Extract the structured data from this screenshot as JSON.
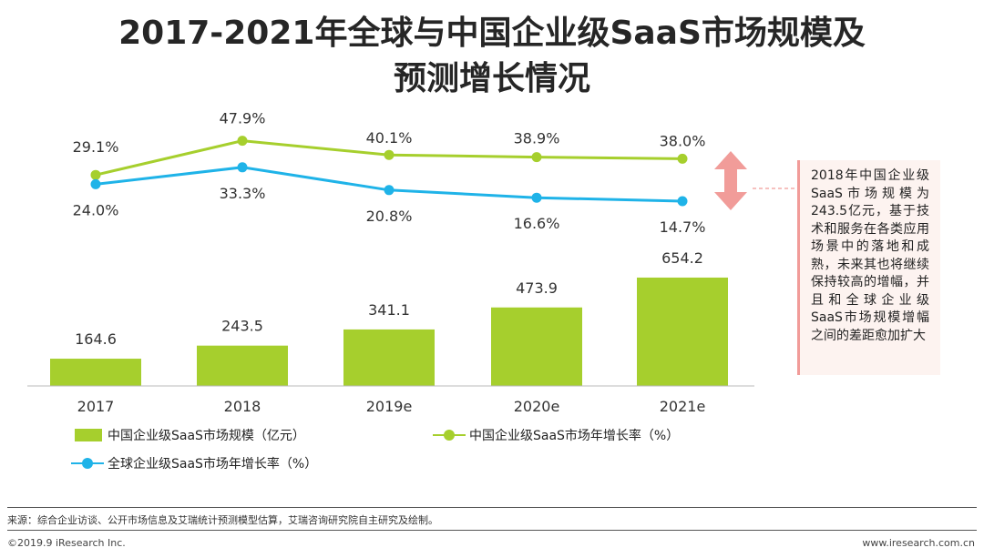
{
  "title_line1": "2017-2021年全球与中国企业级SaaS市场规模及",
  "title_line2": "预测增长情况",
  "callout": "2018年中国企业级SaaS市场规模为243.5亿元，基于技术和服务在各类应用场景中的落地和成熟，未来其也将继续保持较高的增幅，并且和全球企业级SaaS市场规模增幅之间的差距愈加扩大",
  "source": "来源：综合企业访谈、公开市场信息及艾瑞统计预测模型估算，艾瑞咨询研究院自主研究及绘制。",
  "copyright": "©2019.9 iResearch Inc.",
  "website": "www.iresearch.com.cn",
  "colors": {
    "bar": "#a6cf2d",
    "china_line": "#a6cf2d",
    "global_line": "#1fb3e8",
    "arrow": "#f19c99"
  },
  "chart_data": {
    "type": "bar+line",
    "categories": [
      "2017",
      "2018",
      "2019e",
      "2020e",
      "2021e"
    ],
    "series": [
      {
        "name": "中国企业级SaaS市场规模（亿元）",
        "type": "bar",
        "values": [
          164.6,
          243.5,
          341.1,
          473.9,
          654.2
        ],
        "labels": [
          "164.6",
          "243.5",
          "341.1",
          "473.9",
          "654.2"
        ]
      },
      {
        "name": "中国企业级SaaS市场年增长率（%）",
        "type": "line",
        "values": [
          29.1,
          47.9,
          40.1,
          38.9,
          38.0
        ],
        "labels": [
          "29.1%",
          "47.9%",
          "40.1%",
          "38.9%",
          "38.0%"
        ]
      },
      {
        "name": "全球企业级SaaS市场年增长率（%）",
        "type": "line",
        "values": [
          24.0,
          33.3,
          20.8,
          16.6,
          14.7
        ],
        "labels": [
          "24.0%",
          "33.3%",
          "20.8%",
          "16.6%",
          "14.7%"
        ]
      }
    ],
    "legend_position": "bottom"
  }
}
